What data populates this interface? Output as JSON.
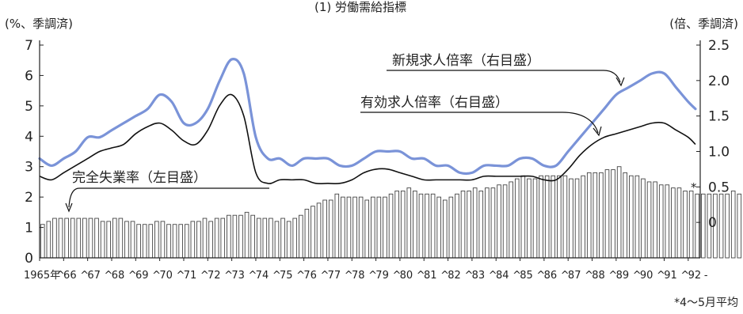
{
  "chart_data": {
    "type": "bar",
    "title": "(1) 労働需給指標",
    "left_axis": {
      "unit_label": "(%、季調済)",
      "range": [
        0,
        7
      ],
      "ticks": [
        0,
        1,
        2,
        3,
        4,
        5,
        6,
        7
      ]
    },
    "right_axis": {
      "unit_label": "(倍、季調済)",
      "range": [
        -0.5,
        2.5
      ],
      "ticks": [
        0,
        0.5,
        1.0,
        1.5,
        2.0,
        2.5
      ],
      "tick_labels": [
        "0",
        "0.5",
        "1.0",
        "1.5",
        "2.0",
        "2.5"
      ]
    },
    "x_tick_labels": [
      "1965年",
      "66",
      "67",
      "68",
      "69",
      "70",
      "71",
      "72",
      "73",
      "74",
      "75",
      "76",
      "77",
      "78",
      "79",
      "80",
      "81",
      "82",
      "83",
      "84",
      "85",
      "86",
      "87",
      "88",
      "89",
      "90",
      "91",
      "92"
    ],
    "x_trailing_mark": "-",
    "grid": false,
    "legend": "inline annotations",
    "annotations": {
      "new_openings": "新規求人倍率（右目盛）",
      "effective_openings": "有効求人倍率（右目盛）",
      "unemployment": "完全失業率（左目盛）",
      "asterisk": "*",
      "footnote": "*4～5月平均"
    },
    "series": [
      {
        "name": "完全失業率",
        "axis": "left",
        "kind": "bar",
        "color": "#555555",
        "period": "quarterly, 1965Q1–1992Q2",
        "values": [
          1.1,
          1.2,
          1.3,
          1.3,
          1.3,
          1.3,
          1.3,
          1.3,
          1.3,
          1.3,
          1.2,
          1.2,
          1.3,
          1.3,
          1.2,
          1.2,
          1.1,
          1.1,
          1.1,
          1.2,
          1.2,
          1.1,
          1.1,
          1.1,
          1.1,
          1.2,
          1.2,
          1.3,
          1.2,
          1.3,
          1.3,
          1.4,
          1.4,
          1.4,
          1.5,
          1.4,
          1.3,
          1.3,
          1.3,
          1.2,
          1.3,
          1.2,
          1.3,
          1.4,
          1.6,
          1.7,
          1.8,
          1.9,
          1.9,
          2.1,
          2.0,
          2.0,
          2.0,
          2.0,
          1.9,
          2.0,
          2.0,
          2.0,
          2.1,
          2.2,
          2.2,
          2.3,
          2.2,
          2.1,
          2.1,
          2.1,
          2.0,
          1.9,
          2.0,
          2.1,
          2.2,
          2.2,
          2.3,
          2.2,
          2.3,
          2.3,
          2.4,
          2.4,
          2.5,
          2.6,
          2.7,
          2.6,
          2.6,
          2.7,
          2.7,
          2.7,
          2.7,
          2.7,
          2.6,
          2.6,
          2.7,
          2.8,
          2.8,
          2.8,
          2.9,
          2.9,
          3.0,
          2.8,
          2.7,
          2.7,
          2.6,
          2.5,
          2.5,
          2.4,
          2.4,
          2.3,
          2.3,
          2.2,
          2.2,
          2.1,
          2.1,
          2.1,
          2.1,
          2.1,
          2.1,
          2.2,
          2.1,
          2.1,
          2.1,
          2.2
        ]
      },
      {
        "name": "新規求人倍率",
        "axis": "right",
        "kind": "line",
        "color": "#7a93d8",
        "x": [
          1965.0,
          1965.5,
          1966.0,
          1966.5,
          1967.0,
          1967.5,
          1968.0,
          1968.5,
          1969.0,
          1969.5,
          1970.0,
          1970.5,
          1971.0,
          1971.5,
          1972.0,
          1972.5,
          1973.0,
          1973.5,
          1974.0,
          1974.5,
          1975.0,
          1975.5,
          1976.0,
          1976.5,
          1977.0,
          1977.5,
          1978.0,
          1978.5,
          1979.0,
          1979.5,
          1980.0,
          1980.5,
          1981.0,
          1981.5,
          1982.0,
          1982.5,
          1983.0,
          1983.5,
          1984.0,
          1984.5,
          1985.0,
          1985.5,
          1986.0,
          1986.5,
          1987.0,
          1987.5,
          1988.0,
          1988.5,
          1989.0,
          1989.5,
          1990.0,
          1990.5,
          1991.0,
          1991.5,
          1992.0,
          1992.3
        ],
        "values": [
          0.9,
          0.8,
          0.9,
          1.0,
          1.2,
          1.2,
          1.3,
          1.4,
          1.5,
          1.6,
          1.8,
          1.7,
          1.4,
          1.4,
          1.6,
          2.0,
          2.3,
          2.1,
          1.2,
          0.9,
          0.9,
          0.8,
          0.9,
          0.9,
          0.9,
          0.8,
          0.8,
          0.9,
          1.0,
          1.0,
          1.0,
          0.9,
          0.9,
          0.8,
          0.8,
          0.7,
          0.7,
          0.8,
          0.8,
          0.8,
          0.9,
          0.9,
          0.8,
          0.8,
          1.0,
          1.2,
          1.4,
          1.6,
          1.8,
          1.9,
          2.0,
          2.1,
          2.1,
          1.9,
          1.7,
          1.6
        ]
      },
      {
        "name": "有効求人倍率",
        "axis": "right",
        "kind": "line",
        "color": "#111111",
        "x": [
          1965.0,
          1965.5,
          1966.0,
          1966.5,
          1967.0,
          1967.5,
          1968.0,
          1968.5,
          1969.0,
          1969.5,
          1970.0,
          1970.5,
          1971.0,
          1971.5,
          1972.0,
          1972.5,
          1973.0,
          1973.5,
          1974.0,
          1974.5,
          1975.0,
          1975.5,
          1976.0,
          1976.5,
          1977.0,
          1977.5,
          1978.0,
          1978.5,
          1979.0,
          1979.5,
          1980.0,
          1980.5,
          1981.0,
          1981.5,
          1982.0,
          1982.5,
          1983.0,
          1983.5,
          1984.0,
          1984.5,
          1985.0,
          1985.5,
          1986.0,
          1986.5,
          1987.0,
          1987.5,
          1988.0,
          1988.5,
          1989.0,
          1989.5,
          1990.0,
          1990.5,
          1991.0,
          1991.5,
          1992.0,
          1992.3
        ],
        "values": [
          0.65,
          0.6,
          0.7,
          0.8,
          0.9,
          1.0,
          1.05,
          1.1,
          1.25,
          1.35,
          1.4,
          1.3,
          1.15,
          1.1,
          1.3,
          1.65,
          1.8,
          1.5,
          0.7,
          0.55,
          0.6,
          0.6,
          0.6,
          0.55,
          0.55,
          0.55,
          0.6,
          0.7,
          0.75,
          0.75,
          0.7,
          0.65,
          0.6,
          0.6,
          0.6,
          0.6,
          0.6,
          0.65,
          0.65,
          0.65,
          0.65,
          0.65,
          0.6,
          0.6,
          0.75,
          0.95,
          1.1,
          1.2,
          1.25,
          1.3,
          1.35,
          1.4,
          1.4,
          1.3,
          1.2,
          1.1
        ]
      }
    ]
  }
}
